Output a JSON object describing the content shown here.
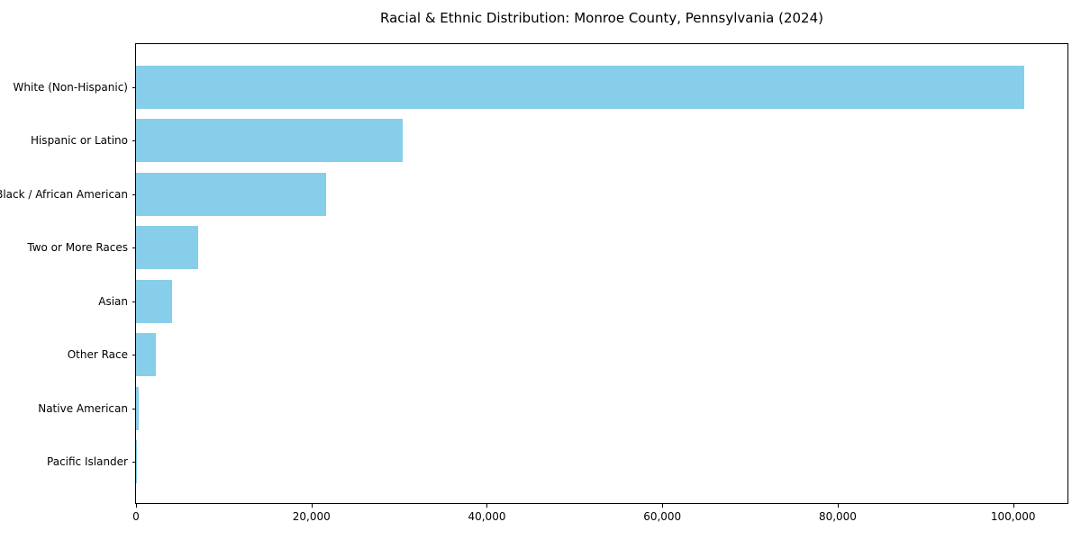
{
  "figure": {
    "background": "#ffffff"
  },
  "chart_data": {
    "type": "bar",
    "orientation": "horizontal",
    "title": "Racial & Ethnic Distribution: Monroe County, Pennsylvania (2024)",
    "categories": [
      "White (Non-Hispanic)",
      "Hispanic or Latino",
      "Black / African American",
      "Two or More Races",
      "Asian",
      "Other Race",
      "Native American",
      "Pacific Islander"
    ],
    "values": [
      101300,
      30400,
      21700,
      7100,
      4100,
      2300,
      300,
      50
    ],
    "bar_color": "#87CEEB",
    "xlabel": "",
    "ylabel": "",
    "xlim": [
      0,
      106400
    ],
    "x_ticks": [
      0,
      20000,
      40000,
      60000,
      80000,
      100000
    ],
    "x_tick_labels": [
      "0",
      "20,000",
      "40,000",
      "60,000",
      "80,000",
      "100,000"
    ],
    "grid": false,
    "legend": false,
    "axis_color": "#000000",
    "text_color": "#000000"
  }
}
